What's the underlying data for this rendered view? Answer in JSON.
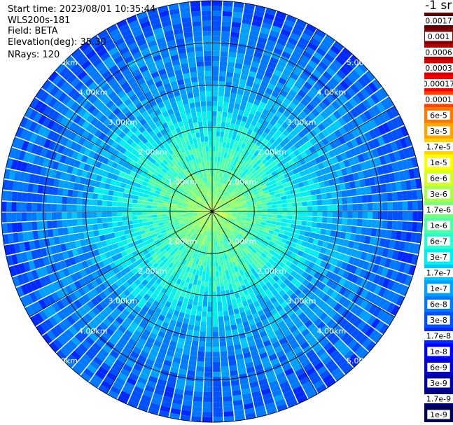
{
  "header": {
    "start_time": "Start time: 2023/08/01 10:35:44",
    "instrument": "WLS200s-181",
    "field": "Field: BETA",
    "elevation": "Elevation(deg): 35.30",
    "nrays": "NRays: 120"
  },
  "colorbar": {
    "unit_label": "-1 sr",
    "entries": [
      {
        "label": "0.0017",
        "color": "#5a0000"
      },
      {
        "label": "0.001",
        "color": "#7f0000"
      },
      {
        "label": "0.0006",
        "color": "#b00000"
      },
      {
        "label": "0.0003",
        "color": "#d80000"
      },
      {
        "label": "0.00017",
        "color": "#ff0000"
      },
      {
        "label": "0.0001",
        "color": "#ff4000"
      },
      {
        "label": "6e-5",
        "color": "#ff7800"
      },
      {
        "label": "3e-5",
        "color": "#ffa400"
      },
      {
        "label": "1.7e-5",
        "color": "#ffd200"
      },
      {
        "label": "1e-5",
        "color": "#ffff00"
      },
      {
        "label": "6e-6",
        "color": "#d6ff25"
      },
      {
        "label": "3e-6",
        "color": "#aaff4d"
      },
      {
        "label": "1.7e-6",
        "color": "#7dff7a"
      },
      {
        "label": "1e-6",
        "color": "#50ffa6"
      },
      {
        "label": "6e-7",
        "color": "#29ffce"
      },
      {
        "label": "3e-7",
        "color": "#00f0f0"
      },
      {
        "label": "1.7e-7",
        "color": "#00c8ff"
      },
      {
        "label": "1e-7",
        "color": "#00a0ff"
      },
      {
        "label": "6e-8",
        "color": "#0078ff"
      },
      {
        "label": "3e-8",
        "color": "#0050ff"
      },
      {
        "label": "1.7e-8",
        "color": "#0028ff"
      },
      {
        "label": "1e-8",
        "color": "#0000ff"
      },
      {
        "label": "6e-9",
        "color": "#0000d0"
      },
      {
        "label": "3e-9",
        "color": "#0000a0"
      },
      {
        "label": "1.7e-9",
        "color": "#000078"
      },
      {
        "label": "1e-9",
        "color": "#000050"
      }
    ]
  },
  "chart_data": {
    "type": "heatmap",
    "projection": "polar",
    "field": "BETA",
    "elevation_deg": 35.3,
    "n_rays": 120,
    "range_rings_km": [
      1,
      2,
      3,
      4,
      5
    ],
    "range_labels": [
      "1.00km",
      "2.00km",
      "3.00km",
      "4.00km",
      "5.00km"
    ],
    "max_range_km": 5.0,
    "radial_spokes_deg": [
      0,
      30,
      60,
      90,
      120,
      150,
      180,
      210,
      240,
      270,
      300,
      330
    ],
    "log_scale": true,
    "value_min": 1e-09,
    "value_max": 0.0017,
    "radial_profile": [
      {
        "range_km": 0.0,
        "level": "3e-6"
      },
      {
        "range_km": 0.5,
        "level": "1.7e-6"
      },
      {
        "range_km": 1.0,
        "level": "1e-6"
      },
      {
        "range_km": 1.5,
        "level": "6e-7"
      },
      {
        "range_km": 2.0,
        "level": "3e-7"
      },
      {
        "range_km": 2.5,
        "level": "1.7e-7"
      },
      {
        "range_km": 3.0,
        "level": "1e-7"
      },
      {
        "range_km": 4.0,
        "level": "6e-8"
      },
      {
        "range_km": 5.0,
        "level": "3e-8"
      }
    ],
    "grid": true
  }
}
